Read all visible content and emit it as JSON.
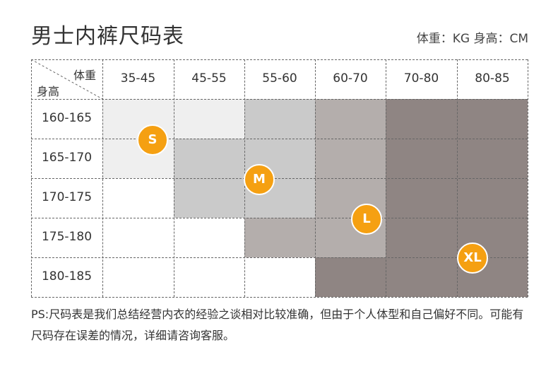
{
  "title": "男士内裤尺码表",
  "unit_note": "体重：KG 身高：CM",
  "corner": {
    "weight_label": "体重",
    "height_label": "身高"
  },
  "weight_ranges": [
    "35-45",
    "45-55",
    "55-60",
    "60-70",
    "70-80",
    "80-85"
  ],
  "height_ranges": [
    "160-165",
    "165-170",
    "170-175",
    "175-180",
    "180-185"
  ],
  "sizes": [
    "S",
    "M",
    "L",
    "XL"
  ],
  "colors": {
    "S": "#efefef",
    "M": "#cacaca",
    "L": "#b4aeac",
    "XL": "#8f8583",
    "badge": "#f5a012"
  },
  "size_grid": [
    [
      "S",
      "S",
      "M",
      "L",
      "XL",
      "XL"
    ],
    [
      "S",
      "M",
      "M",
      "L",
      "XL",
      "XL"
    ],
    [
      "",
      "M",
      "M",
      "L",
      "XL",
      "XL"
    ],
    [
      "",
      "",
      "L",
      "L",
      "XL",
      "XL"
    ],
    [
      "",
      "",
      "",
      "XL",
      "XL",
      "XL"
    ]
  ],
  "note": "PS:尺码表是我们总结经营内衣的经验之谈相对比较准确，但由于个人体型和自己偏好不同。可能有尺码存在误差的情况，详细请咨询客服。"
}
